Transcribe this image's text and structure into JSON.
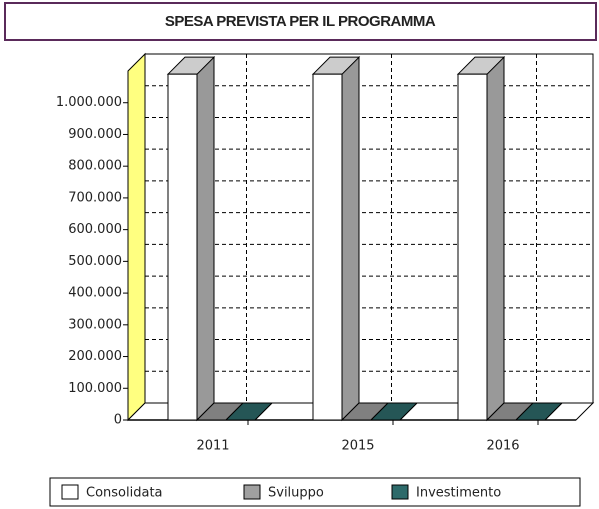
{
  "chart_data": {
    "type": "bar3d",
    "title": "SPESA PREVISTA PER IL PROGRAMMA",
    "categories": [
      "2011",
      "2015",
      "2016"
    ],
    "series": [
      {
        "name": "Consolidata",
        "color": "#ffffff",
        "values": [
          1090000,
          1090000,
          1090000
        ]
      },
      {
        "name": "Sviluppo",
        "color": "#a0a0a0",
        "values": [
          0,
          0,
          0
        ]
      },
      {
        "name": "Investimento",
        "color": "#2e6b6b",
        "values": [
          0,
          0,
          0
        ]
      }
    ],
    "ylim": [
      0,
      1100000
    ],
    "yticks": [
      {
        "value": 0,
        "label": "0"
      },
      {
        "value": 100000,
        "label": "100.000"
      },
      {
        "value": 200000,
        "label": "200.000"
      },
      {
        "value": 300000,
        "label": "300.000"
      },
      {
        "value": 400000,
        "label": "400.000"
      },
      {
        "value": 500000,
        "label": "500.000"
      },
      {
        "value": 600000,
        "label": "600.000"
      },
      {
        "value": 700000,
        "label": "700.000"
      },
      {
        "value": 800000,
        "label": "800.000"
      },
      {
        "value": 900000,
        "label": "900.000"
      },
      {
        "value": 1000000,
        "label": "1.000.000"
      }
    ],
    "grid": true,
    "wall_color": "#ffff80"
  }
}
